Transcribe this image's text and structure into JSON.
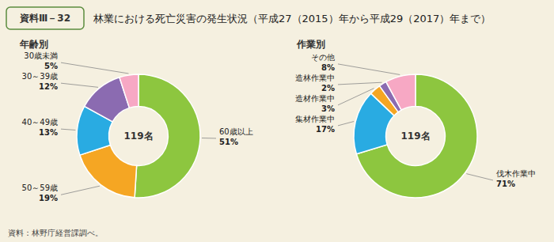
{
  "title": "林業における死亡災害の発生状況（平成27（2015）年から平成29（2017）年まで）",
  "annotations": [
    "資料Ⅲ－32",
    "資料：林野庁経営課調べ。"
  ],
  "chart_data": [
    {
      "type": "donut",
      "title": "年齢別",
      "categories": [
        "60歳以上",
        "50～59歳",
        "40～49歳",
        "30～39歳",
        "30歳未満"
      ],
      "values": [
        51,
        19,
        13,
        12,
        5
      ],
      "value_labels": [
        "51%",
        "19%",
        "13%",
        "12%",
        "5%"
      ],
      "colors": [
        "#8dc63f",
        "#f5a623",
        "#29abe2",
        "#8b6bb1",
        "#f7a8c4"
      ],
      "data_labels": true,
      "annotations": [
        "119名"
      ]
    },
    {
      "type": "donut",
      "title": "作業別",
      "categories": [
        "伐木作業中",
        "集材作業中",
        "造材作業中",
        "造林作業中",
        "その他"
      ],
      "values": [
        71,
        17,
        3,
        2,
        8
      ],
      "value_labels": [
        "71%",
        "17%",
        "3%",
        "2%",
        "8%"
      ],
      "colors": [
        "#8dc63f",
        "#29abe2",
        "#f5a623",
        "#8b6bb1",
        "#f7a8c4"
      ],
      "data_labels": true,
      "annotations": [
        "119名"
      ]
    }
  ]
}
